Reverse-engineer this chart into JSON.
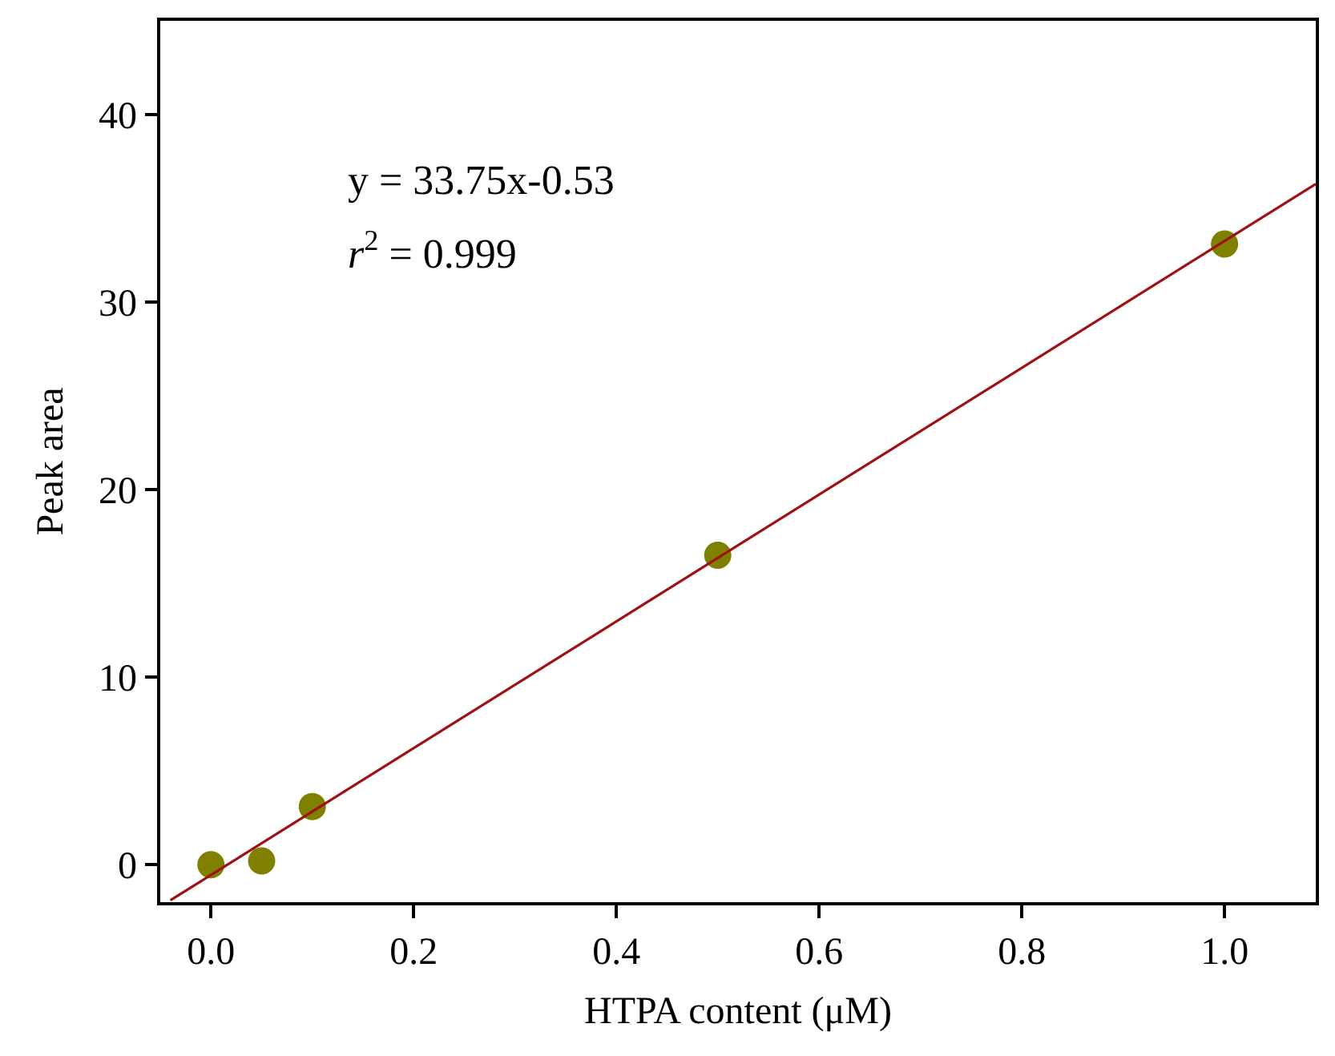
{
  "chart_data": {
    "type": "scatter",
    "xlabel": "HTPA content (μM)",
    "ylabel": "Peak area",
    "series": [
      {
        "color": "#808000",
        "x": [
          0.0,
          0.05,
          0.1,
          0.5,
          1.0
        ],
        "values": [
          0.0,
          0.2,
          3.1,
          16.5,
          33.1
        ],
        "marker": "circle"
      },
      {
        "type": "line",
        "color": "#a01010",
        "x": [
          -0.04,
          1.09
        ],
        "values": [
          -1.9,
          36.3
        ],
        "line_style": "solid"
      }
    ],
    "annotations": [
      "y = 33.75x-0.53",
      "r$^{2}$ = 0.999"
    ],
    "xlim": [
      -0.05,
      1.09
    ],
    "ylim": [
      -2,
      45
    ],
    "xticks": [
      {
        "value": 0.0,
        "label": "0.0"
      },
      0.2,
      0.4,
      0.6,
      0.8,
      {
        "value": 1.0,
        "label": "1.0"
      }
    ],
    "yticks": [
      0,
      10,
      20,
      30,
      40
    ]
  }
}
